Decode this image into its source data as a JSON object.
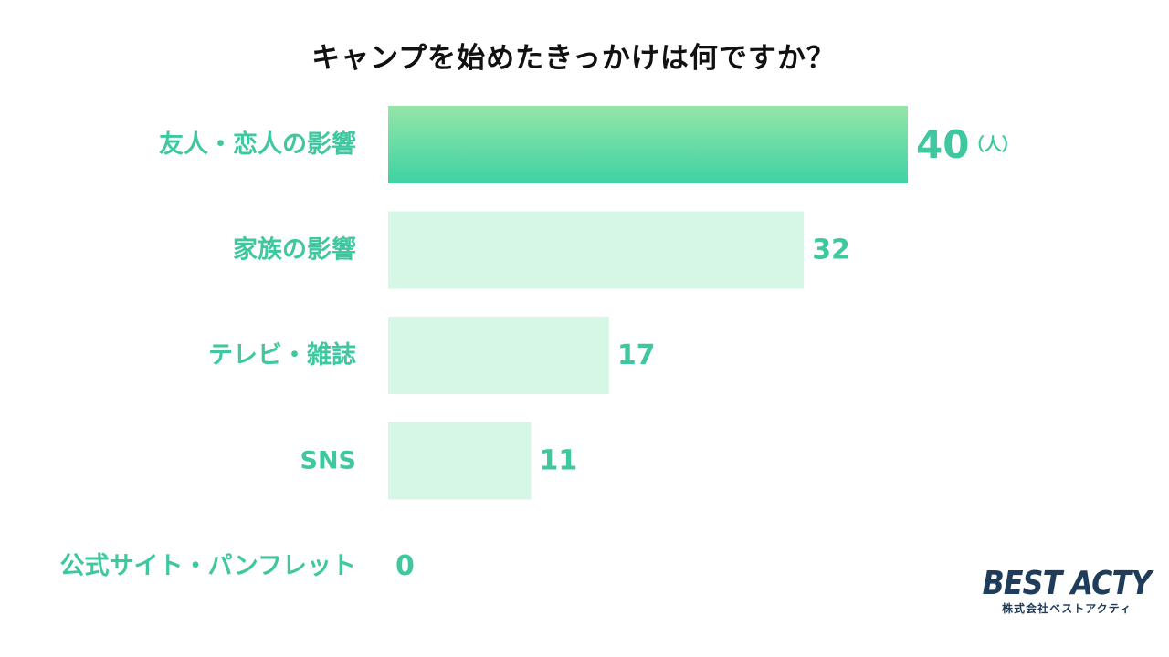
{
  "chart_data": {
    "type": "bar",
    "orientation": "horizontal",
    "title": "キャンプを始めたきっかけは何ですか？",
    "categories": [
      "友人・恋人の影響",
      "家族の影響",
      "テレビ・雑誌",
      "SNS",
      "公式サイト・パンフレット"
    ],
    "values": [
      40,
      32,
      17,
      11,
      0
    ],
    "unit": "（人）",
    "xlim": [
      0,
      40
    ],
    "grid": false,
    "legend": "none",
    "colors": {
      "highlight_top": "#95e6a6",
      "highlight_bottom": "#3dd2a5",
      "bar": "#d6f7e6",
      "label": "#3fc79f"
    }
  },
  "logo": {
    "main": "BEST ACTY",
    "sub": "株式会社ベストアクティ"
  }
}
